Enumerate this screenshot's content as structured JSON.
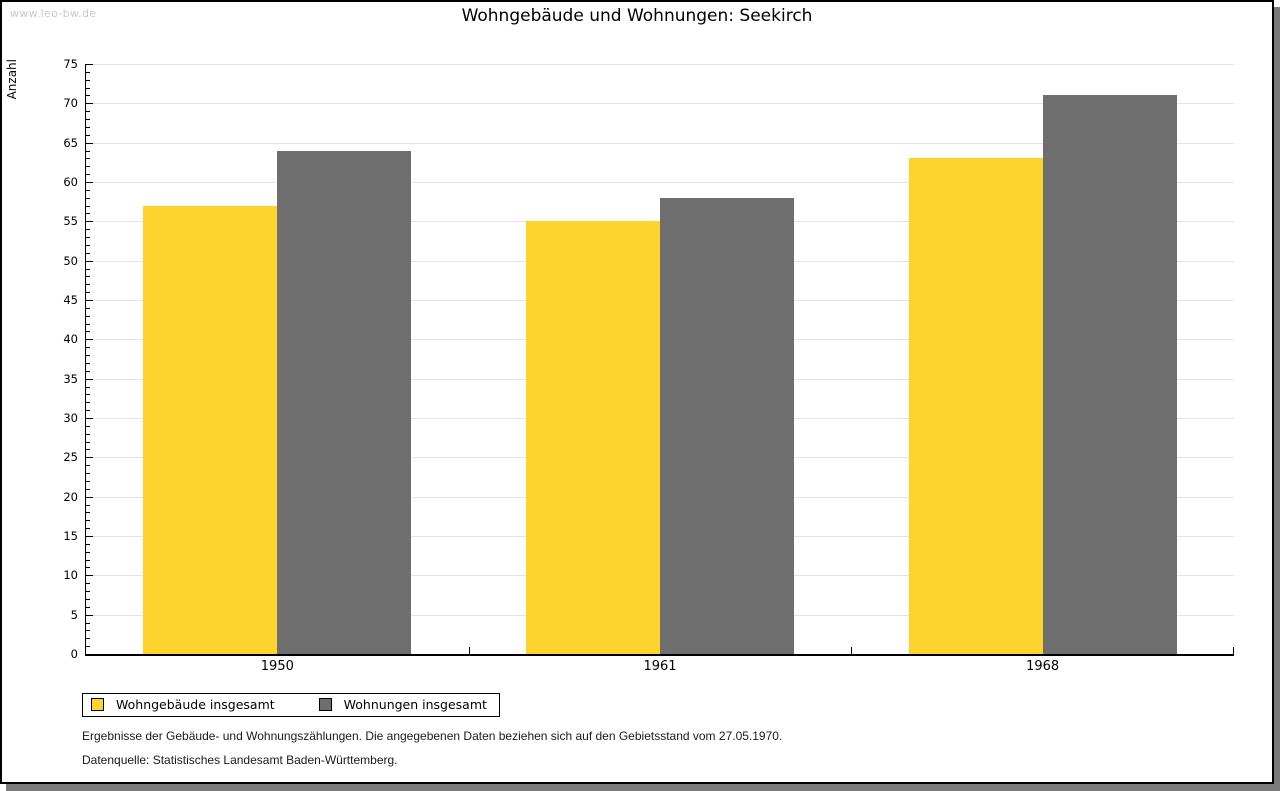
{
  "page": {
    "watermark": "www.leo-bw.de",
    "footnote_line1": "Ergebnisse der Gebäude- und Wohnungszählungen. Die angegebenen Daten beziehen sich auf den Gebietsstand vom 27.05.1970.",
    "footnote_line2": "Datenquelle: Statistisches Landesamt Baden-Württemberg."
  },
  "chart_data": {
    "type": "bar",
    "title": "Wohngebäude und Wohnungen: Seekirch",
    "categories": [
      "1950",
      "1961",
      "1968"
    ],
    "series": [
      {
        "name": "Wohngebäude insgesamt",
        "color": "#fdd32e",
        "values": [
          57,
          55,
          63
        ]
      },
      {
        "name": "Wohnungen insgesamt",
        "color": "#6e6e6e",
        "values": [
          64,
          58,
          71
        ]
      }
    ],
    "xlabel": "",
    "ylabel": "Anzahl",
    "ylim": [
      0,
      75
    ],
    "ytick_step": 5,
    "minor_tick_step": 1,
    "grid": true,
    "legend_position": "bottom-left"
  }
}
